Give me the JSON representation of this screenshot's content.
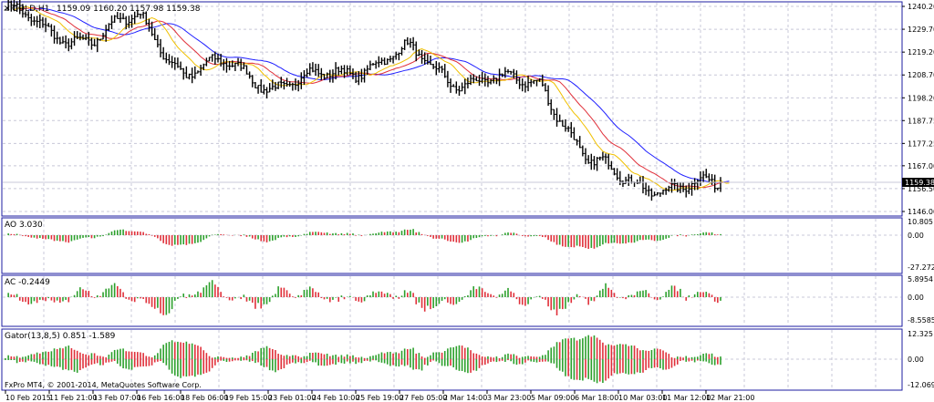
{
  "main_chart": {
    "symbol_label": "GOLD,H1",
    "ohlc": "1159.09 1160.20 1157.98 1159.38",
    "price_axis": [
      "1240.20",
      "1229.70",
      "1219.20",
      "1208.70",
      "1198.20",
      "1187.75",
      "1177.25",
      "1167.00",
      "1156.50",
      "1146.00"
    ],
    "current_price": "1159.38"
  },
  "ao_panel": {
    "label": "AO 3.030",
    "scale": [
      "10.805",
      "0.00",
      "-27.272"
    ]
  },
  "ac_panel": {
    "label": "AC -0.2449",
    "scale": [
      "5.8954",
      "0.00",
      "-8.5585"
    ]
  },
  "gator_panel": {
    "label": "Gator(13,8,5) 0.851 -1.589",
    "scale": [
      "12.325",
      "0.00",
      "-12.069"
    ]
  },
  "copyright": "FxPro MT4, © 2001-2014, MetaQuotes Software Corp.",
  "time_axis": [
    "10 Feb 2015",
    "11 Feb 21:00",
    "13 Feb 07:00",
    "16 Feb 16:00",
    "18 Feb 06:00",
    "19 Feb 15:00",
    "23 Feb 01:00",
    "24 Feb 10:00",
    "25 Feb 19:00",
    "27 Feb 05:00",
    "2 Mar 14:00",
    "3 Mar 23:00",
    "5 Mar 09:00",
    "6 Mar 18:00",
    "10 Mar 03:00",
    "11 Mar 12:00",
    "12 Mar 21:00"
  ],
  "colors": {
    "bars": "#000000",
    "grid": "#c8c8d8",
    "up_histogram": "#2ca02c",
    "down_histogram": "#e0303a",
    "alligator_jaw": "#1f1fff",
    "alligator_teeth": "#e0303a",
    "alligator_lips": "#f0c000",
    "price_line": "#c8c8d8",
    "price_label_bg": "#000000"
  },
  "chart_data": {
    "type": "line",
    "series": [
      {
        "name": "",
        "x": [
          "10 Feb 2015",
          "11 Feb 21:00",
          "13 Feb 07:00",
          "16 Feb 16:00",
          "18 Feb 06:00",
          "19 Feb 15:00",
          "23 Feb 01:00",
          "24 Feb 10:00",
          "25 Feb 19:00",
          "27 Feb 05:00",
          "2 Mar 14:00",
          "3 Mar 23:00",
          "5 Mar 09:00",
          "6 Mar 18:00",
          "10 Mar 03:00",
          "11 Mar 12:00",
          "12 Mar 21:00"
        ],
        "values": [
          1240,
          1227,
          1226,
          1235,
          1210,
          1213,
          1204,
          1207,
          1213,
          1219,
          1207,
          1205,
          1206,
          1168,
          1161,
          1155,
          1159.4
        ]
      }
    ],
    "ylim": [
      1146.0,
      1240.2
    ],
    "grid": true
  }
}
